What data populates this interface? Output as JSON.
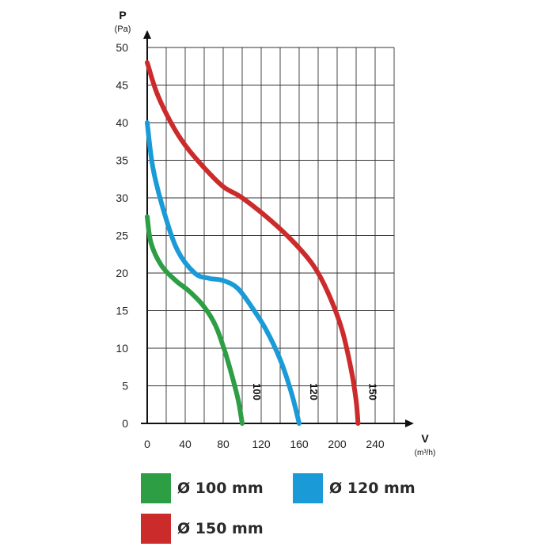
{
  "chart_data": {
    "type": "line",
    "ylabel": "P",
    "yunit": "(Pa)",
    "xlabel": "V",
    "xunit": "(m³/h)",
    "xlim": [
      0,
      260
    ],
    "ylim": [
      0,
      50
    ],
    "xticks": [
      0,
      40,
      80,
      120,
      160,
      200,
      240
    ],
    "yticks": [
      0,
      5,
      10,
      15,
      20,
      25,
      30,
      35,
      40,
      45,
      50
    ],
    "grid": true,
    "legend_position": "bottom",
    "series": [
      {
        "name": "Ø 100 mm",
        "end_label": "100",
        "color": "#2e9e44",
        "points": [
          [
            0,
            27.5
          ],
          [
            4,
            24
          ],
          [
            15,
            21
          ],
          [
            30,
            19
          ],
          [
            45,
            17.5
          ],
          [
            60,
            15.5
          ],
          [
            72,
            13
          ],
          [
            82,
            9.5
          ],
          [
            90,
            6
          ],
          [
            96,
            3
          ],
          [
            100,
            0
          ]
        ]
      },
      {
        "name": "Ø 120 mm",
        "end_label": "120",
        "color": "#1a9bd7",
        "points": [
          [
            0,
            40
          ],
          [
            6,
            34
          ],
          [
            18,
            28
          ],
          [
            32,
            23
          ],
          [
            50,
            20
          ],
          [
            65,
            19.3
          ],
          [
            80,
            19
          ],
          [
            95,
            18
          ],
          [
            110,
            15.5
          ],
          [
            125,
            12.5
          ],
          [
            140,
            8.5
          ],
          [
            152,
            4
          ],
          [
            160,
            0
          ]
        ]
      },
      {
        "name": "Ø 150 mm",
        "end_label": "150",
        "color": "#cc2b2b",
        "points": [
          [
            0,
            48
          ],
          [
            10,
            44
          ],
          [
            25,
            40
          ],
          [
            40,
            37
          ],
          [
            60,
            34
          ],
          [
            80,
            31.5
          ],
          [
            100,
            30
          ],
          [
            130,
            27
          ],
          [
            155,
            24
          ],
          [
            175,
            21
          ],
          [
            190,
            17.5
          ],
          [
            205,
            12.5
          ],
          [
            215,
            7
          ],
          [
            220,
            3
          ],
          [
            222,
            0
          ]
        ]
      }
    ]
  }
}
